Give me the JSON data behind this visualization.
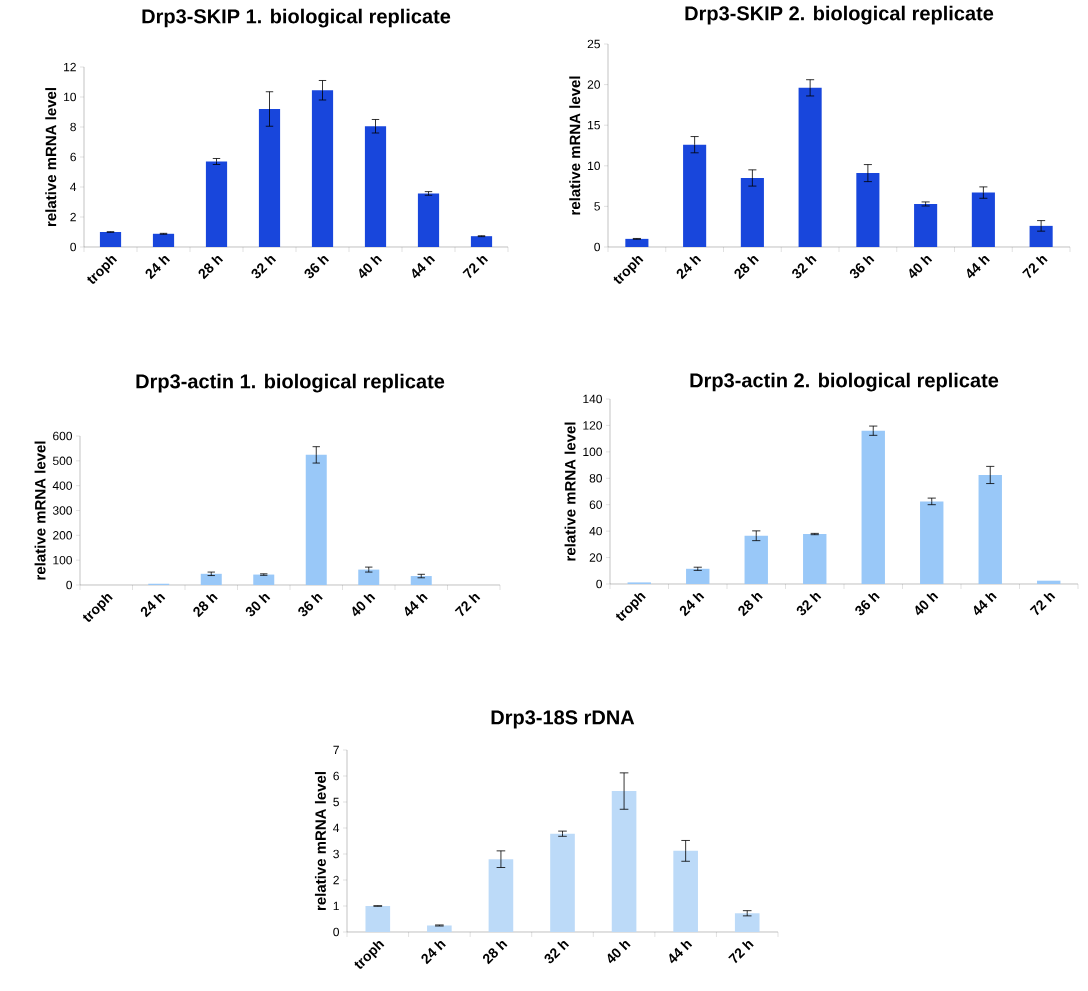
{
  "chart_data": [
    {
      "type": "bar",
      "title": "Drp3-SKIP 1. biological replicate",
      "ylabel": "relative mRNA level",
      "categories": [
        "troph",
        "24 h",
        "28 h",
        "32 h",
        "36 h",
        "40 h",
        "44 h",
        "72 h"
      ],
      "values": [
        1.0,
        0.88,
        5.7,
        9.2,
        10.45,
        8.05,
        3.57,
        0.72
      ],
      "errors": [
        0.02,
        0.03,
        0.2,
        1.15,
        0.65,
        0.45,
        0.12,
        0.03
      ],
      "color": "#1846dc",
      "ylim": [
        0,
        12
      ],
      "yticks": [
        0,
        2,
        4,
        6,
        8,
        10,
        12
      ]
    },
    {
      "type": "bar",
      "title": "Drp3-SKIP 2. biological replicate",
      "ylabel": "relative mRNA level",
      "categories": [
        "troph",
        "24 h",
        "28 h",
        "32 h",
        "36 h",
        "40 h",
        "44 h",
        "72 h"
      ],
      "values": [
        1.0,
        12.6,
        8.5,
        19.6,
        9.1,
        5.3,
        6.7,
        2.6
      ],
      "errors": [
        0.05,
        1.0,
        1.0,
        1.0,
        1.05,
        0.25,
        0.7,
        0.65
      ],
      "color": "#1846dc",
      "ylim": [
        0,
        25
      ],
      "yticks": [
        0,
        5,
        10,
        15,
        20,
        25
      ]
    },
    {
      "type": "bar",
      "title": "Drp3-actin 1. biological replicate",
      "ylabel": "relative mRNA level",
      "categories": [
        "troph",
        "24 h",
        "28 h",
        "30 h",
        "36 h",
        "40 h",
        "44 h",
        "72 h"
      ],
      "values": [
        null,
        5,
        45,
        42,
        524,
        62,
        36,
        null
      ],
      "errors": [
        null,
        null,
        7,
        3,
        33,
        10,
        7,
        null
      ],
      "color": "#99c8f8",
      "ylim": [
        0,
        600
      ],
      "yticks": [
        0,
        100,
        200,
        300,
        400,
        500,
        600
      ]
    },
    {
      "type": "bar",
      "title": "Drp3-actin 2. biological replicate",
      "ylabel": "relative mRNA level",
      "categories": [
        "troph",
        "24 h",
        "28 h",
        "32 h",
        "36 h",
        "40 h",
        "44 h",
        "72 h"
      ],
      "values": [
        1.2,
        11.5,
        36.5,
        37.8,
        116,
        62.5,
        82.5,
        2.5
      ],
      "errors": [
        null,
        1.2,
        3.7,
        0.5,
        3.5,
        2.5,
        6.5,
        null
      ],
      "color": "#99c8f8",
      "ylim": [
        0,
        140
      ],
      "yticks": [
        0,
        20,
        40,
        60,
        80,
        100,
        120,
        140
      ]
    },
    {
      "type": "bar",
      "title": "Drp3-18S rDNA",
      "ylabel": "relative mRNA level",
      "categories": [
        "troph",
        "24 h",
        "28 h",
        "32 h",
        "40 h",
        "44 h",
        "72 h"
      ],
      "values": [
        1.0,
        0.25,
        2.8,
        3.78,
        5.42,
        3.12,
        0.72
      ],
      "errors": [
        0.01,
        0.02,
        0.32,
        0.1,
        0.7,
        0.4,
        0.1
      ],
      "color": "#bcdaf8",
      "ylim": [
        0,
        7
      ],
      "yticks": [
        0,
        1,
        2,
        3,
        4,
        5,
        6,
        7
      ]
    }
  ]
}
